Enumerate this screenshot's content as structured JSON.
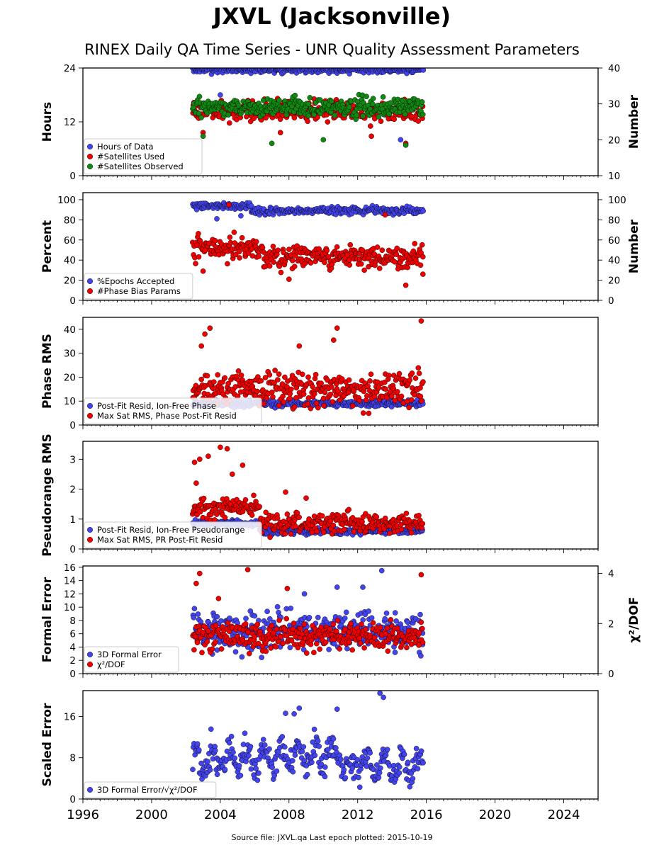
{
  "title": "JXVL (Jacksonville)",
  "subtitle": "RINEX Daily QA Time Series - UNR Quality Assessment Parameters",
  "source": "Source file: JXVL.qa Last epoch plotted: 2015-10-19",
  "colors": {
    "blue": "#4444ee",
    "red": "#ee0000",
    "green": "#118811"
  },
  "chart_data": [
    {
      "type": "scatter",
      "xlim": [
        1996,
        2026
      ],
      "xticks": [
        1996,
        2000,
        2004,
        2008,
        2012,
        2016,
        2020,
        2024
      ],
      "ylabel": "Hours",
      "ylim": [
        0,
        24
      ],
      "yticks": [
        0,
        12,
        24
      ],
      "y2label": "Number",
      "y2lim": [
        10,
        40
      ],
      "y2ticks": [
        10,
        20,
        30,
        40
      ],
      "legend_position": "lower-left",
      "series": [
        {
          "name": "Hours of Data",
          "axis": "left",
          "color": "blue",
          "x_range": [
            2002.4,
            2015.8
          ],
          "typical": 23.6,
          "spread": 0.5,
          "outliers": [
            [
              2003.2,
              16
            ],
            [
              2004.0,
              18
            ],
            [
              2008.5,
              15
            ],
            [
              2011.0,
              14
            ],
            [
              2014.5,
              8
            ]
          ]
        },
        {
          "name": "#Satellites Used",
          "axis": "right",
          "color": "red",
          "x_range": [
            2002.4,
            2015.8
          ],
          "typical": 28,
          "spread": 2,
          "outliers": [
            [
              2003.0,
              22
            ],
            [
              2007.5,
              22
            ],
            [
              2012.8,
              21
            ],
            [
              2014.8,
              19
            ]
          ]
        },
        {
          "name": "#Satellites Observed",
          "axis": "right",
          "color": "green",
          "x_range": [
            2002.4,
            2015.8
          ],
          "typical": 29,
          "spread": 2,
          "outliers": [
            [
              2003.0,
              21
            ],
            [
              2007.0,
              19
            ],
            [
              2010.0,
              20
            ],
            [
              2014.8,
              18.5
            ]
          ]
        }
      ]
    },
    {
      "type": "scatter",
      "xlim": [
        1996,
        2026
      ],
      "xticks": [
        1996,
        2000,
        2004,
        2008,
        2012,
        2016,
        2020,
        2024
      ],
      "ylabel": "Percent",
      "ylim": [
        0,
        107
      ],
      "yticks": [
        0,
        20,
        40,
        60,
        80,
        100
      ],
      "y2label": "Number",
      "y2lim": [
        0,
        107
      ],
      "y2ticks": [
        0,
        20,
        40,
        60,
        80,
        100
      ],
      "legend_position": "lower-left",
      "series": [
        {
          "name": "%Epochs Accepted",
          "axis": "left",
          "color": "blue",
          "segments": [
            [
              2002.4,
              2005.8,
              94
            ],
            [
              2005.8,
              2015.8,
              89
            ]
          ],
          "spread": 2.5,
          "outliers": [
            [
              2003.8,
              81
            ],
            [
              2005.2,
              84
            ]
          ]
        },
        {
          "name": "#Phase Bias Params",
          "axis": "right",
          "color": "red",
          "segments": [
            [
              2002.4,
              2006.5,
              52
            ],
            [
              2006.5,
              2015.8,
              43
            ]
          ],
          "spread": 8,
          "outliers": [
            [
              2004.5,
              95
            ],
            [
              2013.6,
              85
            ],
            [
              2003.0,
              29
            ],
            [
              2008.0,
              21
            ],
            [
              2014.8,
              15
            ],
            [
              2015.8,
              26
            ]
          ]
        }
      ]
    },
    {
      "type": "scatter",
      "xlim": [
        1996,
        2026
      ],
      "xticks": [
        1996,
        2000,
        2004,
        2008,
        2012,
        2016,
        2020,
        2024
      ],
      "ylabel": "Phase RMS",
      "ylim": [
        0,
        45
      ],
      "yticks": [
        0,
        10,
        20,
        30,
        40
      ],
      "legend_position": "lower-left",
      "series": [
        {
          "name": "Post-Fit Resid, Ion-Free Phase",
          "axis": "left",
          "color": "blue",
          "x_range": [
            2002.4,
            2015.8
          ],
          "typical": 9,
          "spread": 1,
          "outliers": []
        },
        {
          "name": "Max Sat RMS, Phase Post-Fit Resid",
          "axis": "left",
          "color": "red",
          "x_range": [
            2002.4,
            2015.8
          ],
          "typical": 15,
          "spread": 5,
          "outliers": [
            [
              2003.1,
              38
            ],
            [
              2003.4,
              40.5
            ],
            [
              2010.8,
              40.5
            ],
            [
              2010.6,
              35.5
            ],
            [
              2015.7,
              43.5
            ],
            [
              2008.6,
              33
            ],
            [
              2002.9,
              33
            ]
          ]
        }
      ]
    },
    {
      "type": "scatter",
      "xlim": [
        1996,
        2026
      ],
      "xticks": [
        1996,
        2000,
        2004,
        2008,
        2012,
        2016,
        2020,
        2024
      ],
      "ylabel": "Pseudorange RMS",
      "ylim": [
        0,
        3.6
      ],
      "yticks": [
        0,
        1,
        2,
        3
      ],
      "legend_position": "lower-left",
      "series": [
        {
          "name": "Post-Fit Resid, Ion-Free Pseudorange",
          "axis": "left",
          "color": "blue",
          "segments": [
            [
              2002.4,
              2006.3,
              0.85
            ],
            [
              2006.3,
              2015.8,
              0.6
            ]
          ],
          "spread": 0.08,
          "outliers": []
        },
        {
          "name": "Max Sat RMS, PR Post-Fit Resid",
          "axis": "left",
          "color": "red",
          "segments": [
            [
              2002.4,
              2006.3,
              1.4
            ],
            [
              2006.3,
              2015.8,
              0.85
            ]
          ],
          "spread": 0.25,
          "outliers": [
            [
              2002.5,
              2.9
            ],
            [
              2002.8,
              3.0
            ],
            [
              2003.3,
              3.1
            ],
            [
              2004.0,
              3.4
            ],
            [
              2004.4,
              3.35
            ],
            [
              2005.3,
              2.8
            ],
            [
              2002.6,
              2.2
            ],
            [
              2004.7,
              2.5
            ],
            [
              2007.8,
              1.9
            ],
            [
              2009.0,
              1.7
            ]
          ]
        }
      ]
    },
    {
      "type": "scatter",
      "xlim": [
        1996,
        2026
      ],
      "xticks": [
        1996,
        2000,
        2004,
        2008,
        2012,
        2016,
        2020,
        2024
      ],
      "ylabel": "Formal Error",
      "ylim": [
        0,
        16.2
      ],
      "yticks": [
        0,
        2,
        4,
        6,
        8,
        10,
        12,
        14,
        16
      ],
      "y2label": "χ²/DOF",
      "y2lim": [
        0,
        4.3
      ],
      "y2ticks": [
        0,
        2,
        4
      ],
      "legend_position": "lower-left",
      "series": [
        {
          "name": "3D Formal Error",
          "axis": "left",
          "color": "blue",
          "x_range": [
            2002.4,
            2015.8
          ],
          "typical": 6.5,
          "spread": 2,
          "outliers": [
            [
              2013.4,
              15.5
            ],
            [
              2010.8,
              13
            ],
            [
              2012.3,
              13
            ],
            [
              2008.9,
              12
            ]
          ]
        },
        {
          "name": "χ²/DOF",
          "axis": "right",
          "color": "red",
          "x_range": [
            2002.4,
            2015.8
          ],
          "typical": 1.5,
          "spread": 0.4,
          "outliers": [
            [
              2002.8,
              4.0
            ],
            [
              2002.6,
              3.6
            ],
            [
              2005.6,
              4.15
            ],
            [
              2015.7,
              3.95
            ],
            [
              2003.9,
              3.0
            ],
            [
              2007.9,
              3.4
            ]
          ]
        }
      ]
    },
    {
      "type": "scatter",
      "xlim": [
        1996,
        2026
      ],
      "xticks": [
        1996,
        2000,
        2004,
        2008,
        2012,
        2016,
        2020,
        2024
      ],
      "ylabel": "Scaled Error",
      "ylim": [
        0,
        21
      ],
      "yticks": [
        0,
        8,
        16
      ],
      "legend_position": "lower-left",
      "series": [
        {
          "name": "3D Formal Error/√χ²/DOF",
          "axis": "left",
          "color": "blue",
          "x_range": [
            2002.4,
            2015.8
          ],
          "typical": 7.5,
          "spread": 2,
          "seasonal": 2,
          "trend": 0.15,
          "outliers": [
            [
              2013.3,
              20.5
            ],
            [
              2013.5,
              19.7
            ],
            [
              2010.8,
              17.4
            ],
            [
              2008.6,
              17.6
            ],
            [
              2007.8,
              16.6
            ],
            [
              2008.3,
              16.5
            ]
          ]
        }
      ]
    }
  ]
}
